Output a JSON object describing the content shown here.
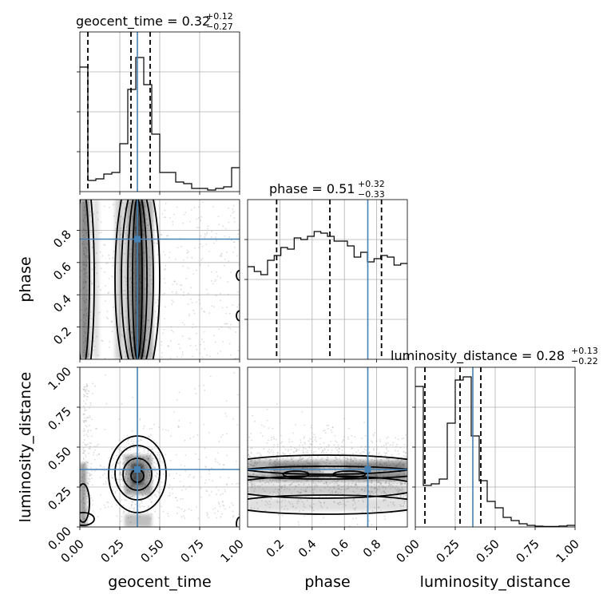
{
  "chart_data": {
    "type": "corner",
    "parameters": [
      "geocent_time",
      "phase",
      "luminosity_distance"
    ],
    "titles": [
      {
        "param": "geocent_time",
        "text": "geocent_time = 0.32",
        "sup": "+0.12",
        "sub": "−0.27"
      },
      {
        "param": "phase",
        "text": "phase = 0.51",
        "sup": "+0.32",
        "sub": "−0.33"
      },
      {
        "param": "luminosity_distance",
        "text": "luminosity_distance = 0.28",
        "sup": "+0.13",
        "sub": "−0.22"
      }
    ],
    "ranges": {
      "geocent_time": [
        0.0,
        1.0
      ],
      "phase": [
        0.0,
        0.99
      ],
      "luminosity_distance": [
        0.0,
        1.0
      ]
    },
    "ticks": {
      "geocent_time": [
        "0.00",
        "0.25",
        "0.50",
        "0.75",
        "1.00"
      ],
      "phase": [
        "0.2",
        "0.4",
        "0.6",
        "0.8"
      ],
      "luminosity_distance": [
        "0.00",
        "0.25",
        "0.50",
        "0.75",
        "1.00"
      ]
    },
    "truths": {
      "geocent_time": 0.36,
      "phase": 0.745,
      "luminosity_distance": 0.36
    },
    "quantiles": {
      "geocent_time": [
        0.05,
        0.32,
        0.44
      ],
      "phase": [
        0.18,
        0.51,
        0.83
      ],
      "luminosity_distance": [
        0.06,
        0.28,
        0.41
      ]
    },
    "histograms": {
      "geocent_time": [
        0.78,
        0.07,
        0.08,
        0.11,
        0.12,
        0.3,
        0.64,
        0.84,
        0.67,
        0.36,
        0.12,
        0.12,
        0.06,
        0.05,
        0.02,
        0.02,
        0.01,
        0.02,
        0.03,
        0.15
      ],
      "phase": [
        0.58,
        0.55,
        0.53,
        0.62,
        0.65,
        0.7,
        0.69,
        0.76,
        0.75,
        0.77,
        0.8,
        0.79,
        0.77,
        0.74,
        0.74,
        0.71,
        0.64,
        0.67,
        0.61,
        0.63,
        0.65,
        0.64,
        0.59,
        0.6
      ],
      "luminosity_distance": [
        0.88,
        0.26,
        0.27,
        0.3,
        0.65,
        0.92,
        0.94,
        0.57,
        0.29,
        0.16,
        0.12,
        0.06,
        0.04,
        0.02,
        0.01,
        0.005,
        0.003,
        0.003,
        0.006,
        0.01
      ]
    },
    "grid": true
  }
}
